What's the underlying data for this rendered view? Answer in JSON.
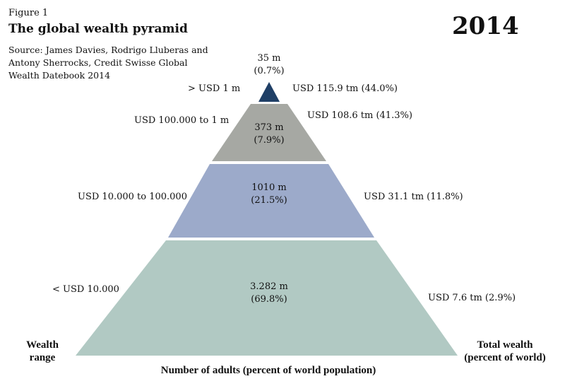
{
  "header": {
    "figure_label": "Figure 1",
    "title": "The global wealth pyramid",
    "source": "Source: James Davies, Rodrigo Lluberas and Antony Sherrocks, Credit Swisse Global Wealth Datebook 2014",
    "year": "2014"
  },
  "colors": {
    "tier1": "#1f3f66",
    "tier2": "#a6a8a3",
    "tier3": "#9caaca",
    "tier4": "#b1c9c3"
  },
  "tiers": [
    {
      "wealth_range": "> USD 1 m",
      "adults": "35 m",
      "adults_pct": "(0.7%)",
      "total_wealth": "USD 115.9 tm (44.0%)"
    },
    {
      "wealth_range": "USD 100.000 to 1 m",
      "adults": "373 m",
      "adults_pct": "(7.9%)",
      "total_wealth": "USD 108.6 tm (41.3%)"
    },
    {
      "wealth_range": "USD 10.000 to 100.000",
      "adults": "1010 m",
      "adults_pct": "(21.5%)",
      "total_wealth": "USD 31.1 tm (11.8%)"
    },
    {
      "wealth_range": "< USD 10.000",
      "adults": "3.282 m",
      "adults_pct": "(69.8%)",
      "total_wealth": "USD 7.6 tm (2.9%)"
    }
  ],
  "axes": {
    "left_label_1": "Wealth",
    "left_label_2": "range",
    "right_label_1": "Total wealth",
    "right_label_2": "(percent of world)",
    "bottom_label": "Number of adults (percent of world population)"
  }
}
